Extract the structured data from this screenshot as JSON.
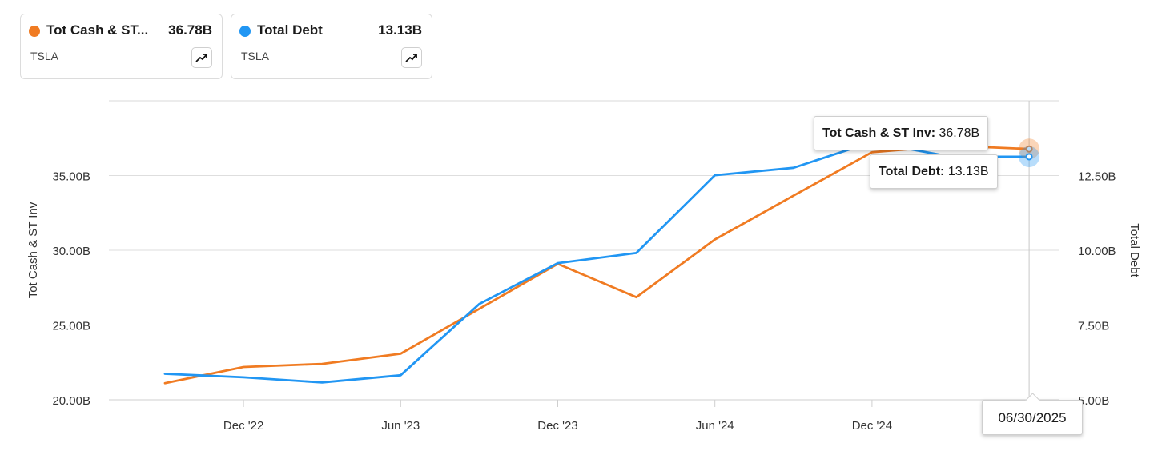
{
  "legend": [
    {
      "name": "Tot Cash & ST...",
      "value": "36.78B",
      "ticker": "TSLA",
      "color": "#f07b22",
      "icon": "trend-up-icon"
    },
    {
      "name": "Total Debt",
      "value": "13.13B",
      "ticker": "TSLA",
      "color": "#2196f3",
      "icon": "trend-up-icon"
    }
  ],
  "tooltip": {
    "cash_label": "Tot Cash & ST Inv:",
    "cash_value": "36.78B",
    "debt_label": "Total Debt:",
    "debt_value": "13.13B",
    "date": "06/30/2025"
  },
  "chart_data": {
    "type": "line",
    "x": [
      "09/30/2022",
      "12/31/2022",
      "03/31/2023",
      "06/30/2023",
      "09/30/2023",
      "12/31/2023",
      "03/31/2024",
      "06/30/2024",
      "09/30/2024",
      "12/31/2024",
      "03/31/2025",
      "06/30/2025"
    ],
    "x_tick_labels": [
      "Dec '22",
      "Jun '23",
      "Dec '23",
      "Jun '24",
      "Dec '24"
    ],
    "x_tick_dates": [
      "12/31/2022",
      "06/30/2023",
      "12/31/2023",
      "06/30/2024",
      "12/31/2024"
    ],
    "y_left": {
      "label": "Tot Cash & ST Inv",
      "lim": [
        20,
        40
      ],
      "ticks": [
        20,
        25,
        30,
        35
      ],
      "tick_labels": [
        "20.00B",
        "25.00B",
        "30.00B",
        "35.00B"
      ]
    },
    "y_right": {
      "label": "Total Debt",
      "lim": [
        5,
        15
      ],
      "ticks": [
        5,
        7.5,
        10,
        12.5
      ],
      "tick_labels": [
        "5.00B",
        "7.50B",
        "10.00B",
        "12.50B"
      ]
    },
    "series": [
      {
        "name": "Tot Cash & ST Inv",
        "axis": "left",
        "color": "#f07b22",
        "values": [
          21.11,
          22.19,
          22.4,
          23.08,
          26.08,
          29.09,
          26.86,
          30.72,
          33.65,
          36.56,
          37.0,
          36.78
        ]
      },
      {
        "name": "Total Debt",
        "axis": "right",
        "color": "#2196f3",
        "values": [
          5.87,
          5.75,
          5.58,
          5.82,
          8.2,
          9.57,
          9.91,
          12.51,
          12.76,
          13.62,
          13.13,
          13.13
        ]
      }
    ],
    "grid": true
  }
}
